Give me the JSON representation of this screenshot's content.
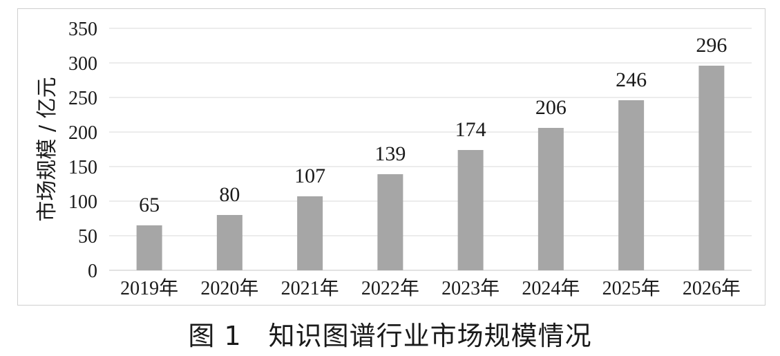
{
  "caption": "图 1　知识图谱行业市场规模情况",
  "chart_data": {
    "type": "bar",
    "title": "",
    "xlabel": "",
    "ylabel": "市场规模 / 亿元",
    "categories": [
      "2019年",
      "2020年",
      "2021年",
      "2022年",
      "2023年",
      "2024年",
      "2025年",
      "2026年"
    ],
    "values": [
      65,
      80,
      107,
      139,
      174,
      206,
      246,
      296
    ],
    "data_labels": [
      "65",
      "80",
      "107",
      "139",
      "174",
      "206",
      "246",
      "296"
    ],
    "ylim": [
      0,
      350
    ],
    "yticks": [
      0,
      50,
      100,
      150,
      200,
      250,
      300,
      350
    ],
    "ytick_labels": [
      "0",
      "50",
      "100",
      "150",
      "200",
      "250",
      "300",
      "350"
    ],
    "grid": true,
    "legend": "none",
    "bar_color": "#a6a6a6",
    "grid_color": "#d9d9d9"
  }
}
